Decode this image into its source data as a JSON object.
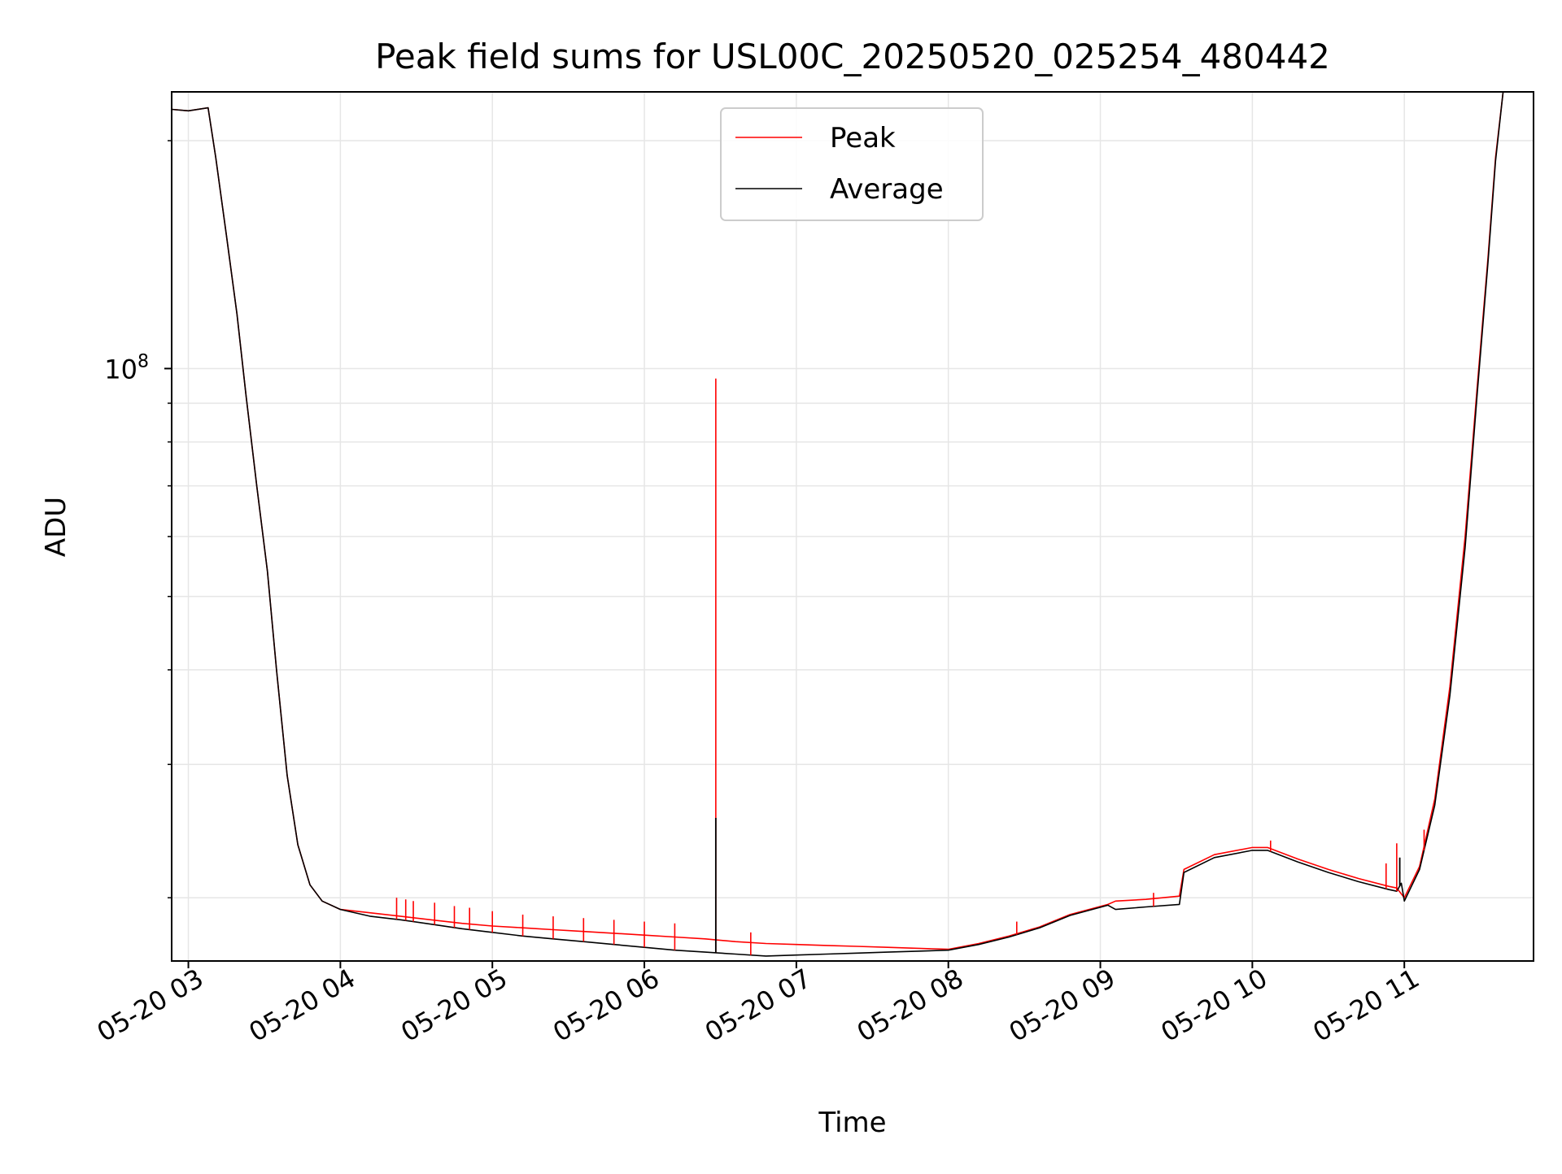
{
  "chart_data": {
    "type": "line",
    "title": "Peak field sums for USL00C_20250520_025254_480442",
    "xlabel": "Time",
    "ylabel": "ADU",
    "y_scale": "log",
    "grid": true,
    "legend_position": "top-center",
    "x_ticks": [
      "05-20 03",
      "05-20 04",
      "05-20 05",
      "05-20 06",
      "05-20 07",
      "05-20 08",
      "05-20 09",
      "05-20 10",
      "05-20 11"
    ],
    "x_tick_hours": [
      3,
      4,
      5,
      6,
      7,
      8,
      9,
      10,
      11
    ],
    "xlim_hours": [
      2.89,
      11.85
    ],
    "y_ticks": [
      {
        "value": 100000000,
        "base": "10",
        "exponent": "8"
      }
    ],
    "y_minor_ticks": [
      20000000,
      30000000,
      40000000,
      50000000,
      60000000,
      70000000,
      80000000,
      90000000,
      200000000
    ],
    "ylim": [
      16500000,
      232000000
    ],
    "series": [
      {
        "name": "Peak",
        "color": "#ff0000",
        "points": [
          [
            2.89,
            220000000
          ],
          [
            3.0,
            219000000
          ],
          [
            3.13,
            221000000
          ],
          [
            3.18,
            190000000
          ],
          [
            3.25,
            150000000
          ],
          [
            3.32,
            118000000
          ],
          [
            3.38,
            92000000
          ],
          [
            3.45,
            70000000
          ],
          [
            3.52,
            54000000
          ],
          [
            3.58,
            40000000
          ],
          [
            3.65,
            29000000
          ],
          [
            3.72,
            23500000
          ],
          [
            3.8,
            20800000
          ],
          [
            3.88,
            19800000
          ],
          [
            4.0,
            19300000
          ],
          [
            4.2,
            19100000
          ],
          [
            4.4,
            18900000
          ],
          [
            4.6,
            18700000
          ],
          [
            4.8,
            18500000
          ],
          [
            5.0,
            18350000
          ],
          [
            5.2,
            18250000
          ],
          [
            5.4,
            18150000
          ],
          [
            5.6,
            18050000
          ],
          [
            5.8,
            17950000
          ],
          [
            6.0,
            17850000
          ],
          [
            6.2,
            17750000
          ],
          [
            6.4,
            17650000
          ],
          [
            6.6,
            17500000
          ],
          [
            6.8,
            17400000
          ],
          [
            7.0,
            17350000
          ],
          [
            7.2,
            17300000
          ],
          [
            7.4,
            17250000
          ],
          [
            7.6,
            17200000
          ],
          [
            7.8,
            17150000
          ],
          [
            8.0,
            17100000
          ],
          [
            8.2,
            17400000
          ],
          [
            8.4,
            17800000
          ],
          [
            8.6,
            18300000
          ],
          [
            8.8,
            19000000
          ],
          [
            9.05,
            19600000
          ],
          [
            9.1,
            19800000
          ],
          [
            9.3,
            19900000
          ],
          [
            9.52,
            20100000
          ],
          [
            9.55,
            21800000
          ],
          [
            9.75,
            22800000
          ],
          [
            10.0,
            23300000
          ],
          [
            10.1,
            23300000
          ],
          [
            10.3,
            22500000
          ],
          [
            10.5,
            21800000
          ],
          [
            10.7,
            21200000
          ],
          [
            10.9,
            20700000
          ],
          [
            10.95,
            20600000
          ],
          [
            11.0,
            20000000
          ],
          [
            11.1,
            22000000
          ],
          [
            11.2,
            27000000
          ],
          [
            11.3,
            38000000
          ],
          [
            11.4,
            60000000
          ],
          [
            11.48,
            95000000
          ],
          [
            11.55,
            140000000
          ],
          [
            11.6,
            190000000
          ],
          [
            11.65,
            232000000
          ]
        ]
      },
      {
        "name": "Average",
        "color": "#000000",
        "points": [
          [
            2.89,
            220000000
          ],
          [
            3.0,
            219000000
          ],
          [
            3.13,
            221000000
          ],
          [
            3.18,
            190000000
          ],
          [
            3.25,
            150000000
          ],
          [
            3.32,
            118000000
          ],
          [
            3.38,
            92000000
          ],
          [
            3.45,
            70000000
          ],
          [
            3.52,
            54000000
          ],
          [
            3.58,
            40000000
          ],
          [
            3.65,
            29000000
          ],
          [
            3.72,
            23500000
          ],
          [
            3.8,
            20800000
          ],
          [
            3.88,
            19800000
          ],
          [
            4.0,
            19300000
          ],
          [
            4.2,
            18900000
          ],
          [
            4.4,
            18700000
          ],
          [
            4.6,
            18450000
          ],
          [
            4.8,
            18200000
          ],
          [
            5.0,
            18000000
          ],
          [
            5.2,
            17800000
          ],
          [
            5.4,
            17650000
          ],
          [
            5.6,
            17500000
          ],
          [
            5.8,
            17350000
          ],
          [
            6.0,
            17200000
          ],
          [
            6.2,
            17050000
          ],
          [
            6.4,
            16950000
          ],
          [
            6.6,
            16850000
          ],
          [
            6.8,
            16750000
          ],
          [
            7.0,
            16800000
          ],
          [
            7.2,
            16850000
          ],
          [
            7.4,
            16900000
          ],
          [
            7.6,
            16950000
          ],
          [
            7.8,
            17000000
          ],
          [
            8.0,
            17050000
          ],
          [
            8.2,
            17350000
          ],
          [
            8.4,
            17750000
          ],
          [
            8.6,
            18250000
          ],
          [
            8.8,
            18950000
          ],
          [
            9.05,
            19550000
          ],
          [
            9.1,
            19300000
          ],
          [
            9.3,
            19450000
          ],
          [
            9.52,
            19600000
          ],
          [
            9.55,
            21600000
          ],
          [
            9.75,
            22600000
          ],
          [
            10.0,
            23100000
          ],
          [
            10.1,
            23100000
          ],
          [
            10.3,
            22300000
          ],
          [
            10.5,
            21600000
          ],
          [
            10.7,
            21000000
          ],
          [
            10.9,
            20500000
          ],
          [
            10.95,
            20400000
          ],
          [
            10.98,
            20900000
          ],
          [
            11.0,
            19800000
          ],
          [
            11.1,
            21800000
          ],
          [
            11.2,
            26500000
          ],
          [
            11.3,
            37000000
          ],
          [
            11.4,
            58000000
          ],
          [
            11.48,
            93000000
          ],
          [
            11.55,
            138000000
          ],
          [
            11.6,
            188000000
          ],
          [
            11.65,
            232000000
          ]
        ]
      }
    ],
    "peak_spikes": [
      {
        "x": 4.37,
        "y": 20000000
      },
      {
        "x": 4.43,
        "y": 19900000
      },
      {
        "x": 4.48,
        "y": 19800000
      },
      {
        "x": 4.62,
        "y": 19700000
      },
      {
        "x": 4.75,
        "y": 19500000
      },
      {
        "x": 4.85,
        "y": 19400000
      },
      {
        "x": 5.0,
        "y": 19200000
      },
      {
        "x": 5.2,
        "y": 19000000
      },
      {
        "x": 5.4,
        "y": 18900000
      },
      {
        "x": 5.6,
        "y": 18800000
      },
      {
        "x": 5.8,
        "y": 18700000
      },
      {
        "x": 6.0,
        "y": 18600000
      },
      {
        "x": 6.2,
        "y": 18500000
      },
      {
        "x": 6.47,
        "y": 97000000
      },
      {
        "x": 6.7,
        "y": 18000000
      },
      {
        "x": 8.45,
        "y": 18600000
      },
      {
        "x": 9.35,
        "y": 20300000
      },
      {
        "x": 10.12,
        "y": 23800000
      },
      {
        "x": 10.88,
        "y": 22200000
      },
      {
        "x": 10.95,
        "y": 23600000
      },
      {
        "x": 11.13,
        "y": 24600000
      }
    ],
    "average_spikes": [
      {
        "x": 6.47,
        "y": 25500000
      },
      {
        "x": 10.97,
        "y": 22600000
      }
    ]
  }
}
